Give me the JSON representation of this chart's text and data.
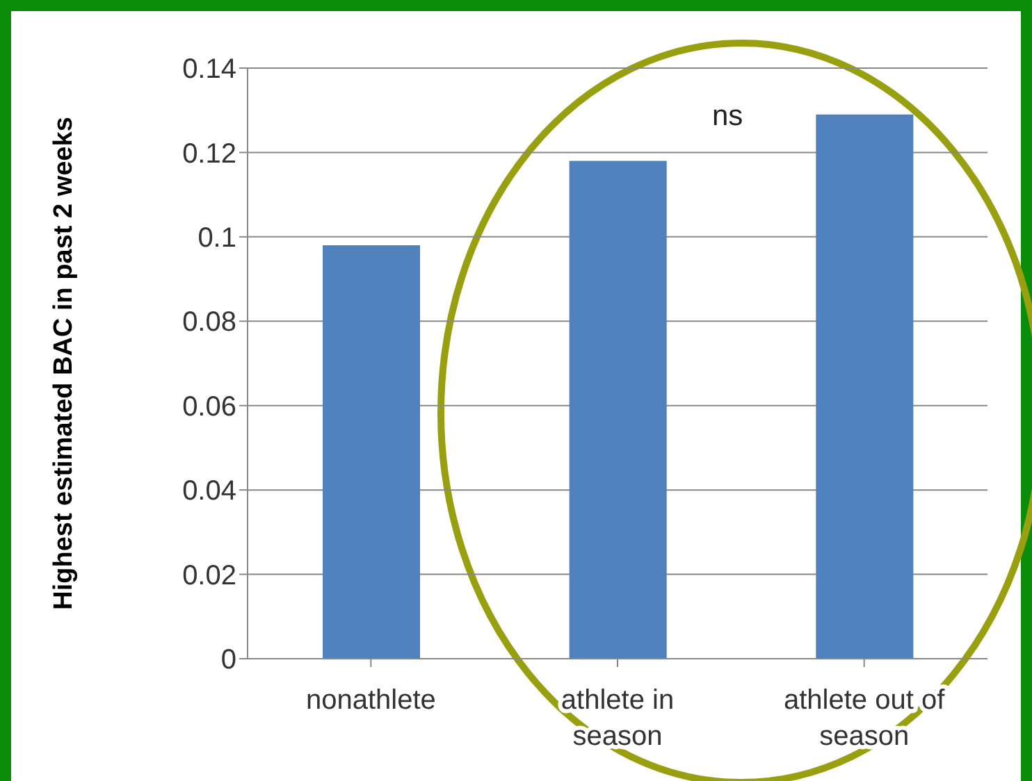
{
  "chart_data": {
    "type": "bar",
    "ylabel": "Highest estimated BAC in past 2 weeks",
    "categories": [
      "nonathlete",
      "athlete in season",
      "athlete out of season"
    ],
    "values": [
      0.098,
      0.118,
      0.129
    ],
    "color": "#4f81bd",
    "ylim": [
      0,
      0.14
    ],
    "yticks": [
      0,
      0.02,
      0.04,
      0.06,
      0.08,
      0.1,
      0.12,
      0.14
    ],
    "grid": "y",
    "annotations": [
      "ns"
    ]
  }
}
